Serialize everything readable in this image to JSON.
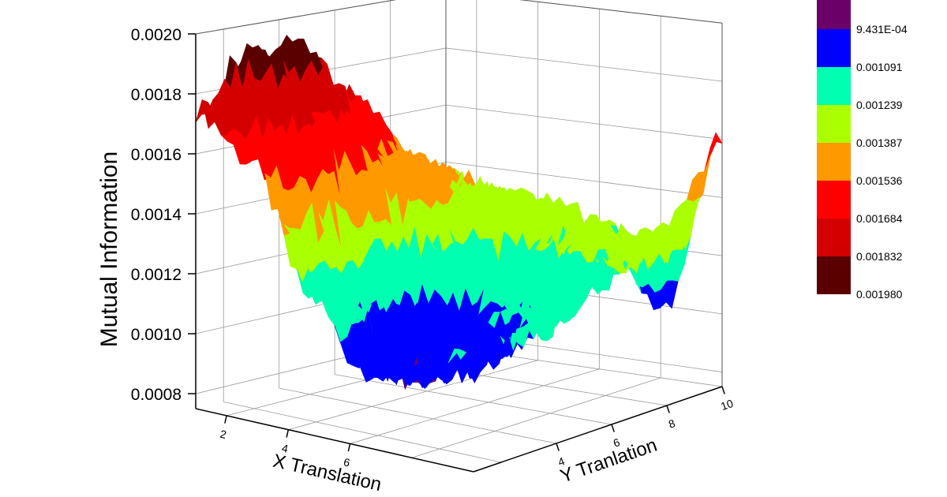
{
  "chart_data": {
    "type": "surface3d",
    "title": "",
    "xlabel": "X Translation",
    "ylabel": "Y Tranlation",
    "zlabel": "Mutual Information",
    "x_ticks": [
      "2",
      "4",
      "6"
    ],
    "y_ticks": [
      "4",
      "6",
      "8",
      "10"
    ],
    "z_ticks": [
      "0.0008",
      "0.0010",
      "0.0012",
      "0.0014",
      "0.0016",
      "0.0018",
      "0.0020"
    ],
    "xlim": [
      1,
      10
    ],
    "ylim": [
      1,
      10
    ],
    "zlim": [
      0.00075,
      0.002
    ],
    "grid": true,
    "surface_estimate": {
      "x": [
        1,
        2.8,
        4.6,
        6.4,
        8.2,
        10
      ],
      "y": [
        1,
        2.8,
        4.6,
        6.4,
        8.2,
        10
      ],
      "z": [
        [
          0.00175,
          0.0019,
          0.0019,
          0.0017,
          0.00145,
          0.00135
        ],
        [
          0.0016,
          0.0017,
          0.0016,
          0.0015,
          0.0014,
          0.0013
        ],
        [
          0.0012,
          0.0011,
          0.00105,
          0.0012,
          0.0013,
          0.0013
        ],
        [
          0.001,
          0.00093,
          0.001,
          0.00115,
          0.00125,
          0.00125
        ],
        [
          0.001,
          0.00098,
          0.0011,
          0.0012,
          0.0013,
          0.001
        ],
        [
          0.0011,
          0.0011,
          0.00115,
          0.00125,
          0.00125,
          0.0016
        ]
      ]
    },
    "colorbar": {
      "levels": [
        "9.431E-04",
        "0.001091",
        "0.001239",
        "0.001387",
        "0.001536",
        "0.001684",
        "0.001832",
        "0.001980"
      ],
      "thresholds": [
        0.0009431,
        0.001091,
        0.001239,
        0.001387,
        0.001536,
        0.001684,
        0.001832
      ],
      "colors": [
        "#6a0068",
        "#0000ff",
        "#00ffb0",
        "#aaff00",
        "#ff9900",
        "#ff0000",
        "#d40000",
        "#5a0000"
      ],
      "position": "right"
    }
  }
}
